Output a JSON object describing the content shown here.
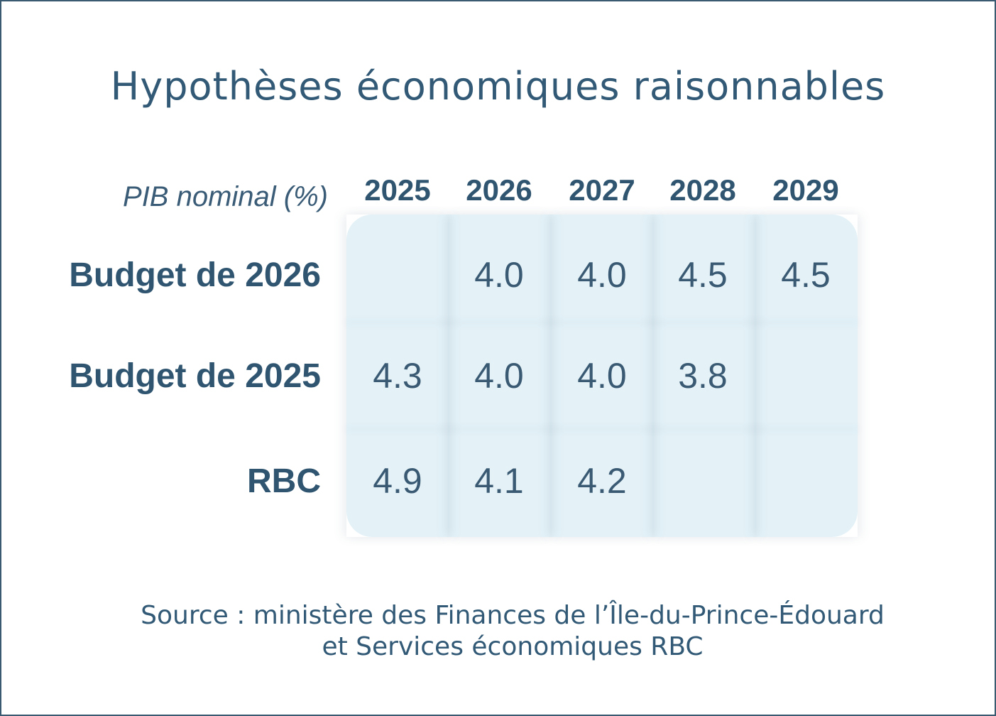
{
  "title": "Hypothèses économiques raisonnables",
  "corner_label": "PIB nominal (%)",
  "source_lines": [
    "Source : ministère des Finances de l’Île-du-Prince-Édouard",
    "et Services économiques RBC"
  ],
  "colors": {
    "text": "#325a76",
    "panel": "#e4f2f8",
    "border": "#3a5a72"
  },
  "chart_data": {
    "type": "table",
    "title": "Hypothèses économiques raisonnables",
    "row_header_label": "PIB nominal (%)",
    "columns": [
      "2025",
      "2026",
      "2027",
      "2028",
      "2029"
    ],
    "rows": [
      {
        "label": "Budget de 2026",
        "values": [
          "",
          "4.0",
          "4.0",
          "4.5",
          "4.5"
        ]
      },
      {
        "label": "Budget de 2025",
        "values": [
          "4.3",
          "4.0",
          "4.0",
          "3.8",
          ""
        ]
      },
      {
        "label": "RBC",
        "values": [
          "4.9",
          "4.1",
          "4.2",
          "",
          ""
        ]
      }
    ]
  }
}
